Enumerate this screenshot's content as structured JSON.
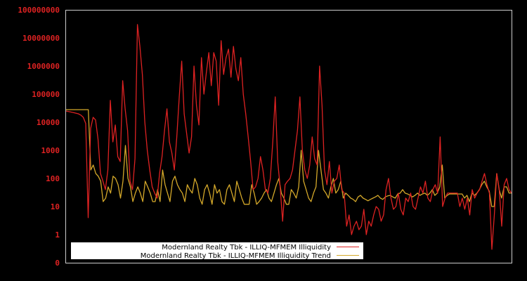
{
  "chart_data": {
    "type": "line",
    "title": "",
    "xlabel": "",
    "ylabel": "",
    "yscale": "log",
    "ylim": [
      0,
      100000000
    ],
    "grid": false,
    "legend_position": "lower-left",
    "y_ticks": [
      "0",
      "1",
      "10",
      "100",
      "1000",
      "10000",
      "100000",
      "1000000",
      "10000000",
      "100000000"
    ],
    "x_ticks": [],
    "colors": {
      "background": "#000000",
      "frame": "#cccccc",
      "tick_label": "#dd2222",
      "series_illiquidity": "#dd2222",
      "series_trend": "#d4a82a",
      "legend_bg": "#ffffff",
      "legend_text": "#000000"
    },
    "series": [
      {
        "name": "Modernland Realty Tbk - ILLIQ-MFMEM Illiquidity",
        "color": "#dd2222",
        "values": [
          25000,
          24000,
          23000,
          22000,
          21000,
          20000,
          18000,
          15000,
          9000,
          4,
          6000,
          15000,
          12000,
          2500,
          150,
          80,
          40,
          200,
          60000,
          2000,
          8000,
          600,
          400,
          300000,
          30000,
          5000,
          80,
          40,
          500,
          30000000,
          5000000,
          500000,
          10000,
          1000,
          200,
          50,
          30,
          20,
          150,
          600,
          5000,
          30000,
          2000,
          800,
          200,
          3000,
          80000,
          1500000,
          20000,
          4000,
          800,
          3000,
          1000000,
          40000,
          8000,
          2000000,
          100000,
          600000,
          3000000,
          200000,
          3000000,
          1500000,
          40000,
          8000000,
          500000,
          2000000,
          4000000,
          400000,
          5000000,
          800000,
          300000,
          2000000,
          100000,
          20000,
          3000,
          400,
          40,
          50,
          100,
          600,
          200,
          40,
          30,
          100,
          2000,
          80000,
          400,
          50,
          3,
          60,
          80,
          100,
          200,
          1000,
          5000,
          80000,
          1000,
          200,
          100,
          300,
          3000,
          500,
          300,
          1000000,
          40000,
          200,
          60,
          400,
          30,
          80,
          100,
          300,
          40,
          30,
          2,
          5,
          1,
          2,
          3,
          1.5,
          2,
          8,
          1,
          3,
          2,
          5,
          10,
          8,
          3,
          5,
          40,
          100,
          20,
          8,
          10,
          30,
          8,
          5,
          20,
          15,
          30,
          10,
          8,
          20,
          50,
          30,
          80,
          20,
          15,
          40,
          60,
          30,
          3000,
          10,
          20,
          30,
          30,
          30,
          30,
          30,
          10,
          20,
          8,
          20,
          5,
          40,
          20,
          30,
          40,
          80,
          150,
          60,
          30,
          0.3,
          5,
          150,
          40,
          2,
          60,
          100,
          40,
          30
        ]
      },
      {
        "name": "Modernland Realty Tbk - ILLIQ-MFMEM Illiquidity Trend",
        "color": "#d4a82a",
        "values": [
          28000,
          28000,
          28000,
          28000,
          28000,
          28000,
          28000,
          28000,
          28000,
          28000,
          200,
          300,
          150,
          120,
          80,
          15,
          20,
          50,
          30,
          120,
          100,
          60,
          20,
          80,
          1500,
          100,
          50,
          15,
          30,
          50,
          30,
          15,
          80,
          50,
          30,
          15,
          15,
          40,
          15,
          200,
          60,
          30,
          15,
          80,
          120,
          60,
          40,
          30,
          15,
          60,
          40,
          30,
          100,
          60,
          20,
          12,
          40,
          60,
          30,
          12,
          60,
          30,
          40,
          15,
          12,
          40,
          60,
          30,
          15,
          80,
          40,
          20,
          12,
          12,
          12,
          60,
          30,
          12,
          15,
          20,
          30,
          40,
          20,
          15,
          30,
          60,
          100,
          30,
          20,
          12,
          12,
          40,
          30,
          20,
          50,
          1000,
          80,
          40,
          20,
          15,
          30,
          50,
          1000,
          200,
          40,
          30,
          20,
          50,
          100,
          30,
          40,
          80,
          20,
          30,
          25,
          20,
          18,
          15,
          22,
          25,
          20,
          18,
          16,
          18,
          20,
          22,
          25,
          20,
          18,
          22,
          24,
          25,
          22,
          20,
          28,
          30,
          40,
          30,
          28,
          25,
          22,
          25,
          30,
          25,
          28,
          30,
          25,
          30,
          40,
          25,
          30,
          50,
          300,
          20,
          25,
          28,
          28,
          28,
          28,
          28,
          28,
          20,
          25,
          15,
          30,
          25,
          30,
          40,
          60,
          80,
          50,
          35,
          10,
          10,
          150,
          40,
          20,
          50,
          50,
          30,
          30
        ]
      }
    ]
  },
  "legend": {
    "items": [
      {
        "label": "Modernland Realty Tbk - ILLIQ-MFMEM Illiquidity",
        "color": "#dd2222"
      },
      {
        "label": "Modernland Realty Tbk - ILLIQ-MFMEM Illiquidity Trend",
        "color": "#d4a82a"
      }
    ]
  }
}
